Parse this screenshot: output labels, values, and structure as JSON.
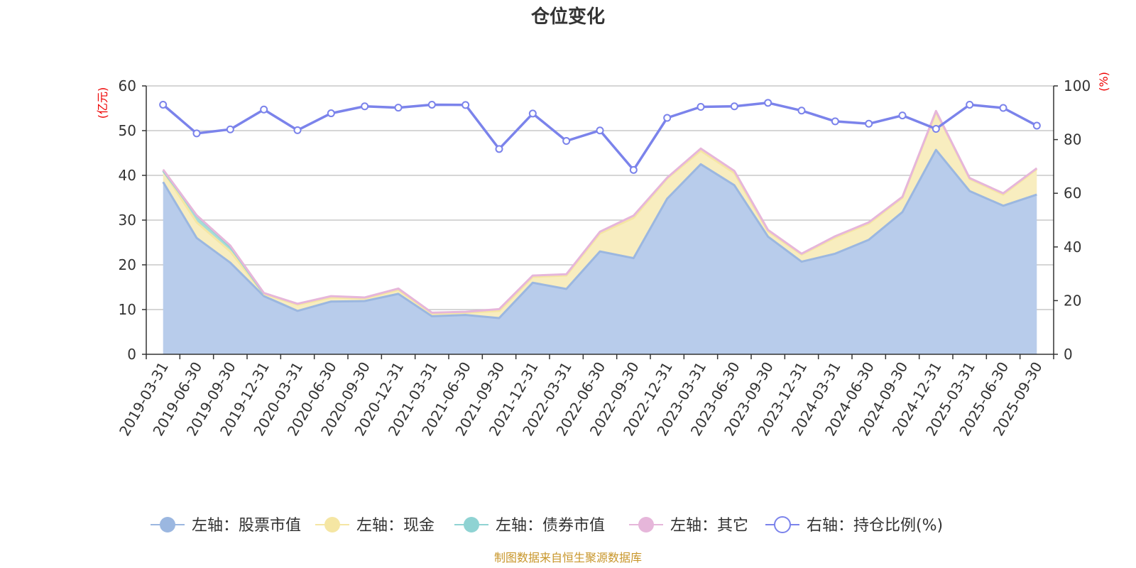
{
  "chart_data": {
    "type": "area",
    "title": "仓位变化",
    "left_unit": "(亿元)",
    "right_unit": "(%)",
    "source": "制图数据来自恒生聚源数据库",
    "categories": [
      "2019-03-31",
      "2019-06-30",
      "2019-09-30",
      "2019-12-31",
      "2020-03-31",
      "2020-06-30",
      "2020-09-30",
      "2020-12-31",
      "2021-03-31",
      "2021-06-30",
      "2021-09-30",
      "2021-12-31",
      "2022-03-31",
      "2022-06-30",
      "2022-09-30",
      "2022-12-31",
      "2023-03-31",
      "2023-06-30",
      "2023-09-30",
      "2023-12-31",
      "2024-03-31",
      "2024-06-30",
      "2024-09-30",
      "2024-12-31",
      "2025-03-31",
      "2025-06-30",
      "2025-09-30"
    ],
    "left_axis": {
      "min": 0,
      "max": 60,
      "ticks": [
        0,
        10,
        20,
        30,
        40,
        50,
        60
      ]
    },
    "right_axis": {
      "min": 0,
      "max": 100,
      "ticks": [
        0,
        20,
        40,
        60,
        80,
        100
      ]
    },
    "stacked_series": [
      {
        "name": "左轴：股票市值",
        "color": "#9bb7e0",
        "fill": "#b8cceb",
        "values": [
          38.5,
          26.0,
          20.5,
          13.0,
          9.7,
          11.8,
          11.9,
          13.5,
          8.5,
          8.8,
          8.1,
          16.0,
          14.6,
          23.0,
          21.5,
          34.8,
          42.5,
          37.8,
          26.3,
          20.7,
          22.5,
          25.6,
          31.8,
          45.7,
          36.5,
          33.2,
          35.7
        ]
      },
      {
        "name": "左轴：现金",
        "color": "#f5e6a3",
        "fill": "#f8edbf",
        "values": [
          2.5,
          3.5,
          2.5,
          0.5,
          1.4,
          0.9,
          0.6,
          0.9,
          0.6,
          0.5,
          1.6,
          1.3,
          3.0,
          4.0,
          9.0,
          4.5,
          3.0,
          2.7,
          1.2,
          1.6,
          3.6,
          3.6,
          3.2,
          8.4,
          2.7,
          2.5,
          5.7
        ]
      },
      {
        "name": "左轴：债券市值",
        "color": "#8fd3d3",
        "fill": "#a6dcd8",
        "values": [
          0,
          1.5,
          1.0,
          0,
          0,
          0,
          0,
          0,
          0,
          0,
          0,
          0,
          0,
          0,
          0,
          0,
          0,
          0,
          0,
          0,
          0,
          0,
          0,
          0,
          0,
          0,
          0
        ]
      },
      {
        "name": "左轴：其它",
        "color": "#e6b6da",
        "fill": "#f0cfe6",
        "values": [
          0.3,
          0.1,
          0.3,
          0.2,
          0.2,
          0.3,
          0.2,
          0.3,
          0.2,
          0.2,
          0.4,
          0.3,
          0.3,
          0.4,
          0.5,
          0.2,
          0.5,
          0.5,
          0.3,
          0.2,
          0.3,
          0.3,
          0.2,
          0.3,
          0.2,
          0.3,
          0.2
        ]
      }
    ],
    "line_series": {
      "name": "右轴：持仓比例(%)",
      "color": "#7b83eb",
      "values": [
        93.0,
        82.3,
        83.8,
        91.2,
        83.5,
        89.8,
        92.4,
        91.9,
        93.0,
        92.9,
        76.5,
        89.7,
        79.5,
        83.4,
        68.7,
        88.1,
        92.2,
        92.4,
        93.7,
        90.8,
        86.8,
        85.9,
        89.0,
        84.0,
        93.0,
        91.8,
        85.2
      ]
    }
  }
}
